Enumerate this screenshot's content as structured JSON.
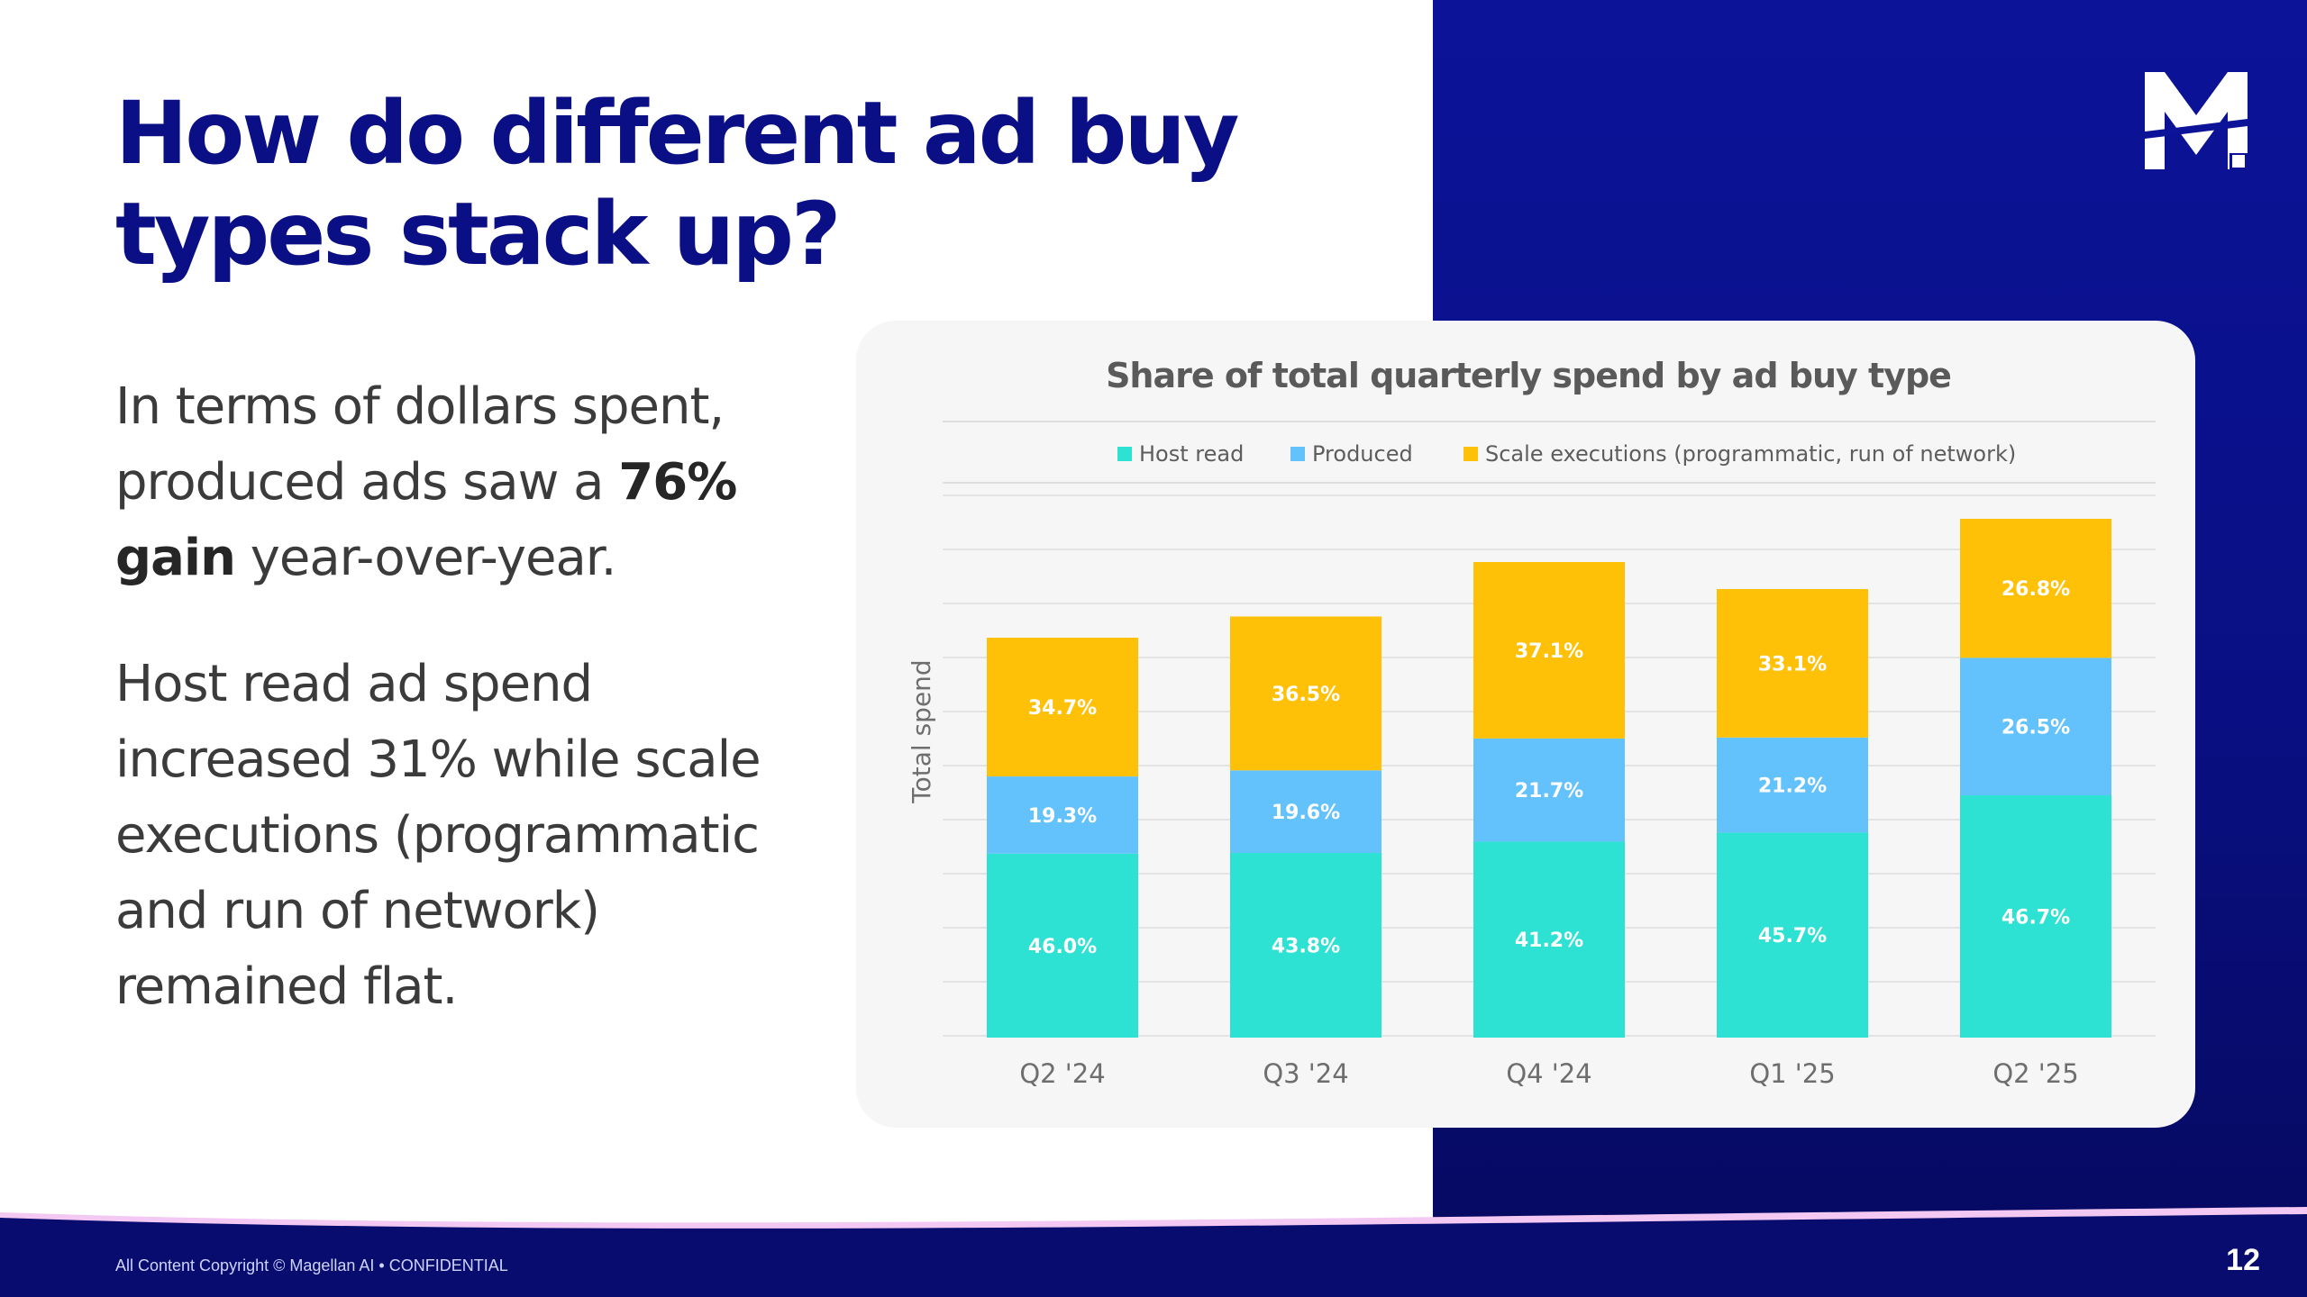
{
  "slide": {
    "title": "How do different ad buy types stack up?",
    "paragraph1": {
      "before": "In terms of dollars spent, produced ads saw a ",
      "bold": "76% gain",
      "after": " year-over-year."
    },
    "paragraph2": "Host read ad spend increased 31% while scale executions (programmatic and run of network) remained flat.",
    "footer": "All Content Copyright © Magellan AI • CONFIDENTIAL",
    "page_number": "12"
  },
  "colors": {
    "title": "#0a0f85",
    "host_read": "#2ee2d3",
    "produced": "#63c2fb",
    "scale_executions": "#fec107",
    "panel": "#0c1399"
  },
  "chart_data": {
    "type": "bar",
    "stacked": true,
    "title": "Share of total quarterly spend by ad buy type",
    "xlabel": "",
    "ylabel": "Total spend",
    "categories": [
      "Q2 '24",
      "Q3 '24",
      "Q4 '24",
      "Q1 '25",
      "Q2 '25"
    ],
    "totals_relative": [
      0.74,
      0.78,
      0.88,
      0.83,
      0.96
    ],
    "series": [
      {
        "name": "Host read",
        "color": "#2ee2d3",
        "values": [
          46.0,
          43.8,
          41.2,
          45.7,
          46.7
        ],
        "labels": [
          "46.0%",
          "43.8%",
          "41.2%",
          "45.7%",
          "46.7%"
        ]
      },
      {
        "name": "Produced",
        "color": "#63c2fb",
        "values": [
          19.3,
          19.6,
          21.7,
          21.2,
          26.5
        ],
        "labels": [
          "19.3%",
          "19.6%",
          "21.7%",
          "21.2%",
          "26.5%"
        ]
      },
      {
        "name": "Scale executions (programmatic, run of network)",
        "color": "#fec107",
        "values": [
          34.7,
          36.5,
          37.1,
          33.1,
          26.8
        ],
        "labels": [
          "34.7%",
          "36.5%",
          "37.1%",
          "33.1%",
          "26.8%"
        ]
      }
    ],
    "legend_position": "top",
    "grid": true
  }
}
